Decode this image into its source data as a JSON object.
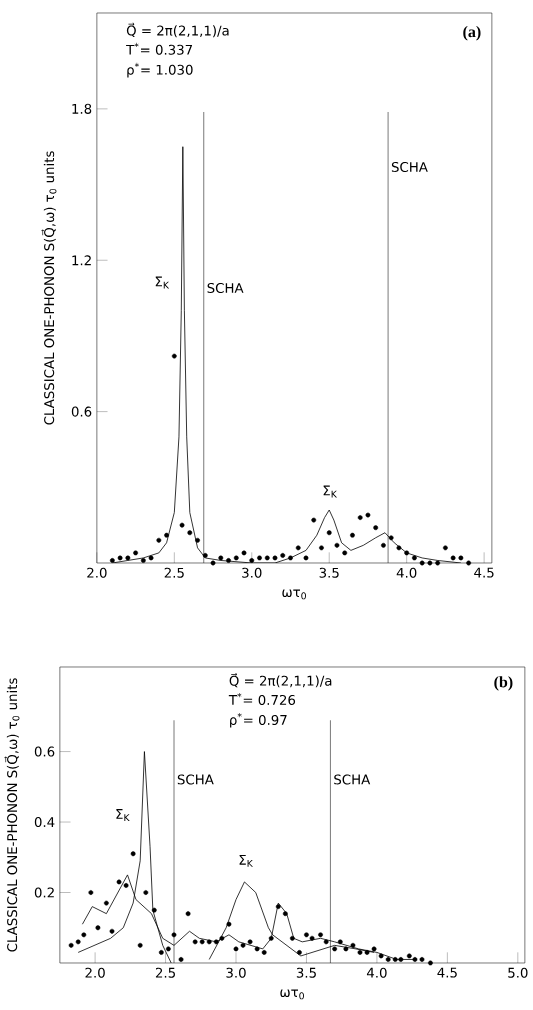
{
  "chart_data": [
    {
      "type": "scatter",
      "title": "(a)",
      "xlabel": "ωτ$_{0}$",
      "ylabel": "CLASSICAL ONE-PHONON S(Q⃗,ω)    τ$_{0}$ units",
      "xlim": [
        2.0,
        4.55
      ],
      "ylim": [
        0,
        2.18
      ],
      "xticks": [
        {
          "value": 2.0,
          "label": "2.0"
        },
        {
          "value": 2.5,
          "label": "2.5"
        },
        {
          "value": 3.0,
          "label": "3.0"
        },
        {
          "value": 3.5,
          "label": "3.5"
        },
        {
          "value": 4.0,
          "label": "4.0"
        },
        {
          "value": 4.5,
          "label": "4.5"
        }
      ],
      "yticks": [
        0.6,
        1.2,
        1.8
      ],
      "line_style": "solid",
      "annotations": [
        "Q⃗ = 2π(2,1,1)/a",
        "T$^{*}$= 0.337",
        "ρ$^{*}$= 1.030",
        "Σ$_{K}$",
        "Σ$_{K}$"
      ],
      "ref_lines": [
        {
          "axis": "x",
          "value": 2.69,
          "label": "SCHA"
        },
        {
          "axis": "x",
          "value": 3.88,
          "label": "SCHA"
        }
      ],
      "series": [
        {
          "marker": "circle",
          "color": "#000000",
          "x": [
            2.1,
            2.15,
            2.2,
            2.25,
            2.3,
            2.35,
            2.4,
            2.45,
            2.5,
            2.55,
            2.6,
            2.65,
            2.7,
            2.75,
            2.8,
            2.85,
            2.9,
            2.95,
            3.0,
            3.05,
            3.1,
            3.15,
            3.2,
            3.25,
            3.3,
            3.35,
            3.4,
            3.45,
            3.5,
            3.55,
            3.6,
            3.65,
            3.7,
            3.75,
            3.8,
            3.85,
            3.9,
            3.95,
            4.0,
            4.05,
            4.1,
            4.15,
            4.2,
            4.25,
            4.3,
            4.35,
            4.4
          ],
          "values": [
            0.01,
            0.02,
            0.02,
            0.04,
            0.01,
            0.02,
            0.09,
            0.11,
            0.82,
            0.15,
            0.12,
            0.09,
            0.03,
            0.0,
            0.02,
            0.01,
            0.02,
            0.04,
            0.01,
            0.02,
            0.02,
            0.02,
            0.03,
            0.02,
            0.06,
            0.02,
            0.17,
            0.06,
            0.12,
            0.07,
            0.04,
            0.11,
            0.18,
            0.19,
            0.14,
            0.07,
            0.1,
            0.06,
            0.04,
            0.02,
            0.0,
            0.0,
            0.0,
            0.06,
            0.02,
            0.02,
            0.0
          ]
        },
        {
          "type": "line",
          "color": "#000000",
          "x": [
            2.1,
            2.2,
            2.3,
            2.4,
            2.45,
            2.5,
            2.53,
            2.545,
            2.555,
            2.565,
            2.58,
            2.6,
            2.65,
            2.7,
            2.8,
            3.0,
            3.15,
            3.25,
            3.35,
            3.42,
            3.47,
            3.5,
            3.53,
            3.58,
            3.64,
            3.72,
            3.8,
            3.86,
            3.92,
            4.0,
            4.1,
            4.2,
            4.35
          ],
          "values": [
            0.0,
            0.01,
            0.02,
            0.04,
            0.08,
            0.2,
            0.5,
            1.0,
            1.65,
            1.0,
            0.5,
            0.2,
            0.06,
            0.02,
            0.01,
            0.0,
            0.0,
            0.02,
            0.05,
            0.11,
            0.18,
            0.21,
            0.17,
            0.08,
            0.05,
            0.07,
            0.1,
            0.12,
            0.08,
            0.04,
            0.02,
            0.01,
            0.0
          ]
        }
      ]
    },
    {
      "type": "scatter",
      "title": "(b)",
      "xlabel": "ωτ$_{0}$",
      "ylabel": "CLASSICAL ONE-PHONON S(Q⃗,ω)    τ$_{0}$ units",
      "xlim": [
        1.75,
        5.05
      ],
      "ylim": [
        0,
        0.84
      ],
      "xticks": [
        {
          "value": 2.0,
          "label": "2.0"
        },
        {
          "value": 2.5,
          "label": "2.5"
        },
        {
          "value": 3.0,
          "label": "3.0"
        },
        {
          "value": 3.5,
          "label": "3.5"
        },
        {
          "value": 4.0,
          "label": "4.0"
        },
        {
          "value": 4.5,
          "label": "4.5"
        },
        {
          "value": 5.0,
          "label": "5.0"
        }
      ],
      "yticks": [
        0.2,
        0.4,
        0.6
      ],
      "line_style": "solid",
      "annotations": [
        "Q⃗ = 2π(2,1,1)/a",
        "T$^{*}$= 0.726",
        "ρ$^{*}$= 0.97",
        "Σ$_{K}$",
        "Σ$_{K}$"
      ],
      "ref_lines": [
        {
          "axis": "x",
          "value": 2.56,
          "label": "SCHA"
        },
        {
          "axis": "x",
          "value": 3.67,
          "label": "SCHA"
        }
      ],
      "series": [
        {
          "marker": "circle",
          "color": "#000000",
          "x": [
            1.83,
            1.88,
            1.92,
            1.97,
            2.02,
            2.08,
            2.12,
            2.17,
            2.22,
            2.27,
            2.32,
            2.36,
            2.42,
            2.47,
            2.52,
            2.56,
            2.61,
            2.66,
            2.71,
            2.76,
            2.81,
            2.86,
            2.9,
            2.95,
            3.0,
            3.05,
            3.1,
            3.15,
            3.2,
            3.25,
            3.3,
            3.35,
            3.4,
            3.45,
            3.5,
            3.54,
            3.6,
            3.64,
            3.7,
            3.74,
            3.78,
            3.83,
            3.88,
            3.93,
            3.98,
            4.03,
            4.08,
            4.13,
            4.17,
            4.23,
            4.27,
            4.32,
            4.38
          ],
          "values": [
            0.05,
            0.06,
            0.08,
            0.2,
            0.1,
            0.17,
            0.09,
            0.23,
            0.22,
            0.31,
            0.05,
            0.2,
            0.15,
            0.03,
            0.04,
            0.08,
            0.01,
            0.14,
            0.06,
            0.06,
            0.06,
            0.06,
            0.07,
            0.11,
            0.04,
            0.05,
            0.06,
            0.04,
            0.03,
            0.07,
            0.16,
            0.14,
            0.07,
            0.03,
            0.08,
            0.07,
            0.08,
            0.06,
            0.04,
            0.06,
            0.04,
            0.05,
            0.03,
            0.03,
            0.04,
            0.02,
            0.01,
            0.01,
            0.01,
            0.02,
            0.01,
            0.01,
            0.0
          ]
        },
        {
          "type": "line",
          "color": "#000000",
          "x": [
            1.88,
            2.11,
            2.2,
            2.27,
            2.32,
            2.35,
            2.39,
            2.41,
            2.48,
            2.54,
            2.65,
            2.81,
            2.93,
            3.0,
            3.06,
            3.14,
            3.23,
            3.26,
            3.46,
            3.7,
            3.85,
            3.98
          ],
          "values": [
            0.03,
            0.07,
            0.1,
            0.17,
            0.29,
            0.6,
            0.33,
            0.15,
            0.05,
            0.0,
            null,
            0.01,
            0.1,
            0.18,
            0.23,
            0.2,
            0.1,
            0.08,
            0.02,
            0.05,
            0.04,
            0.03
          ]
        },
        {
          "type": "line",
          "color": "#000000",
          "x": [
            1.91,
            1.98,
            2.08,
            2.23,
            2.29,
            2.4,
            2.48,
            2.56,
            2.67,
            2.74,
            2.86,
            2.95,
            3.02,
            3.19,
            3.25,
            3.3,
            3.36,
            3.41,
            3.47,
            3.6,
            3.7,
            3.87,
            4.0,
            4.14,
            4.28
          ],
          "values": [
            0.11,
            0.16,
            0.14,
            0.25,
            0.18,
            0.14,
            0.07,
            0.05,
            0.09,
            0.07,
            0.06,
            0.08,
            0.06,
            0.04,
            0.07,
            0.17,
            0.14,
            0.07,
            0.06,
            0.07,
            0.06,
            0.04,
            0.03,
            0.01,
            0.01
          ]
        }
      ]
    }
  ]
}
